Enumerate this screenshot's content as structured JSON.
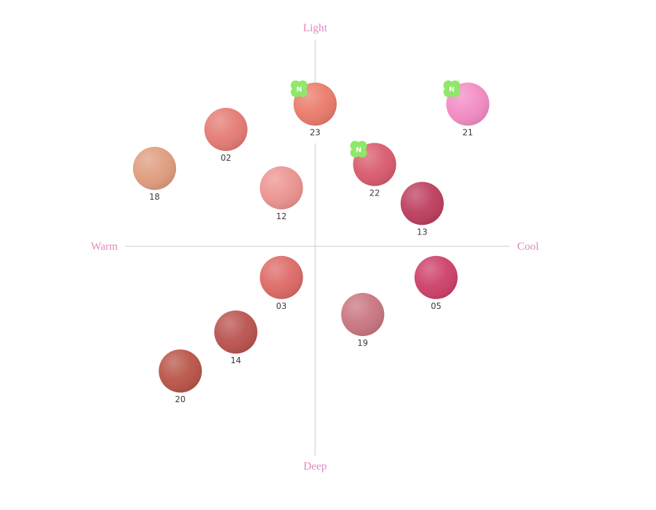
{
  "chart_data": {
    "type": "scatter",
    "title": "",
    "axes": {
      "top": "Light",
      "bottom": "Deep",
      "left": "Warm",
      "right": "Cool"
    },
    "xlim": [
      -1,
      1
    ],
    "ylim": [
      -1,
      1
    ],
    "grid": false,
    "badge_label": "N",
    "badge_color": "#8ee86a",
    "points": [
      {
        "label": "23",
        "x": 0.0,
        "y": 0.73,
        "color": "#ea7a6a",
        "new": true
      },
      {
        "label": "21",
        "x": 0.77,
        "y": 0.73,
        "color": "#f28bc4",
        "new": true
      },
      {
        "label": "02",
        "x": -0.45,
        "y": 0.6,
        "color": "#e47a73",
        "new": false
      },
      {
        "label": "22",
        "x": 0.3,
        "y": 0.42,
        "color": "#d85a6d",
        "new": true
      },
      {
        "label": "18",
        "x": -0.81,
        "y": 0.4,
        "color": "#df9c7e",
        "new": false
      },
      {
        "label": "12",
        "x": -0.17,
        "y": 0.3,
        "color": "#ec9390",
        "new": false
      },
      {
        "label": "13",
        "x": 0.54,
        "y": 0.22,
        "color": "#bd3d5e",
        "new": false
      },
      {
        "label": "03",
        "x": -0.17,
        "y": -0.16,
        "color": "#dd6966",
        "new": false
      },
      {
        "label": "05",
        "x": 0.61,
        "y": -0.16,
        "color": "#cd3f68",
        "new": false
      },
      {
        "label": "19",
        "x": 0.24,
        "y": -0.35,
        "color": "#c97580",
        "new": false
      },
      {
        "label": "14",
        "x": -0.4,
        "y": -0.44,
        "color": "#b9524f",
        "new": false
      },
      {
        "label": "20",
        "x": -0.68,
        "y": -0.64,
        "color": "#b85446",
        "new": false
      }
    ]
  }
}
